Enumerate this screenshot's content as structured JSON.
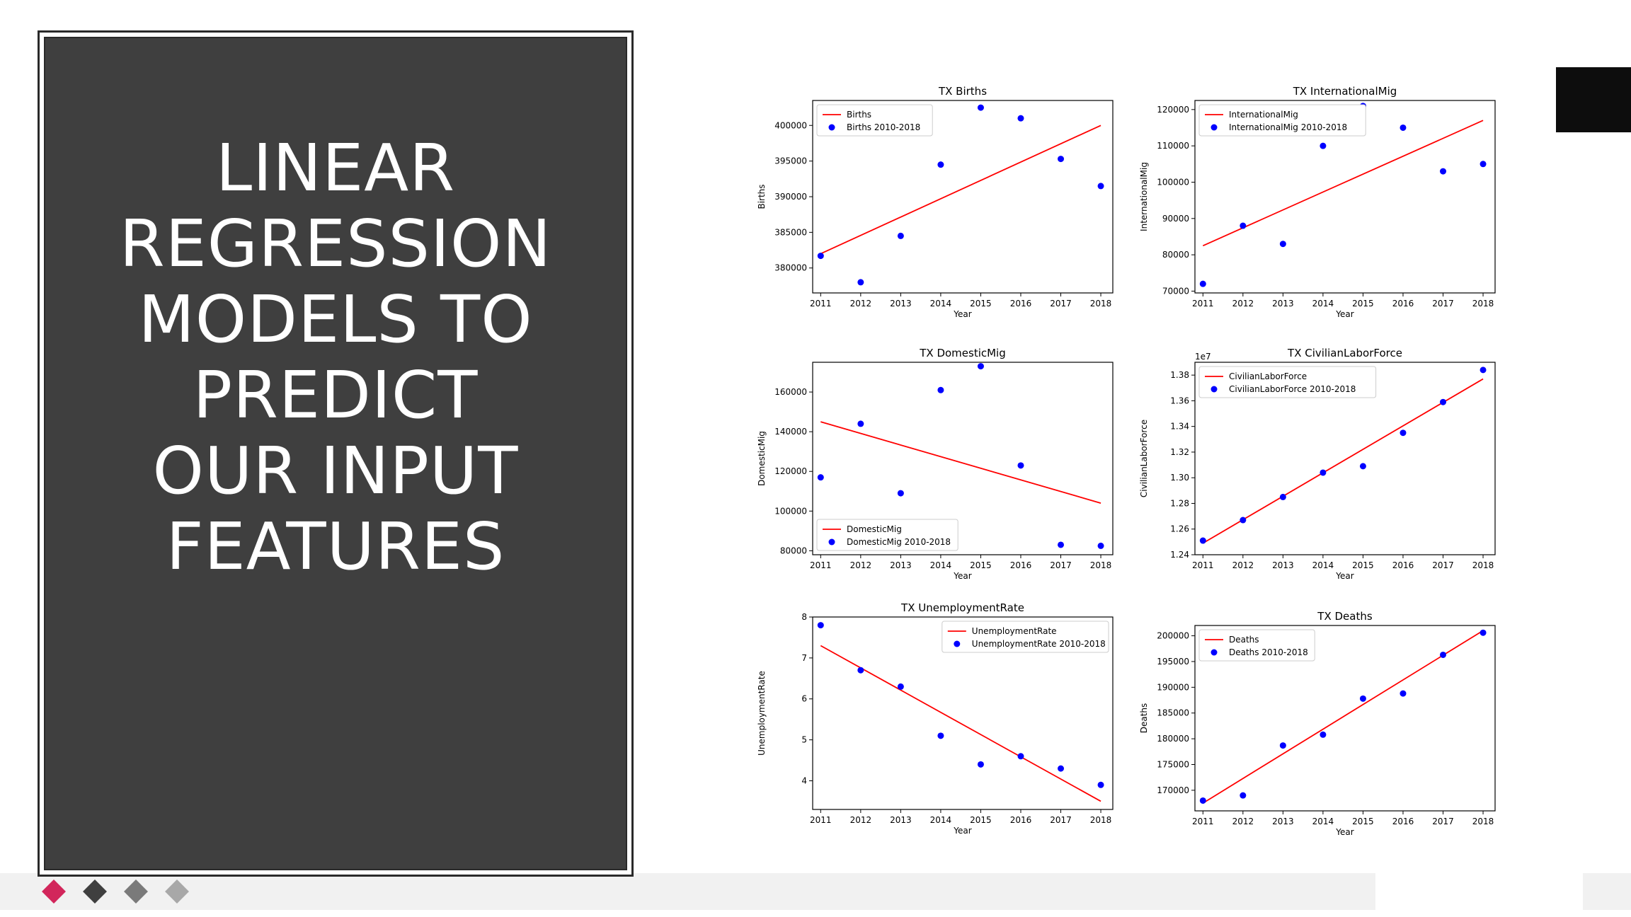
{
  "slide": {
    "title": "LINEAR\nREGRESSION\nMODELS TO\nPREDICT\nOUR INPUT\nFEATURES"
  },
  "nav_diamonds": [
    {
      "name": "diamond-1",
      "color": "#d2265b"
    },
    {
      "name": "diamond-2",
      "color": "#3f3f3f"
    },
    {
      "name": "diamond-3",
      "color": "#7a7a7a"
    },
    {
      "name": "diamond-4",
      "color": "#a8a8a8"
    }
  ],
  "colors": {
    "fit_line": "#ff0000",
    "points": "#0000ff"
  },
  "chart_data": [
    {
      "type": "scatter",
      "title": "TX Births",
      "xlabel": "Year",
      "ylabel": "Births",
      "x": [
        2011,
        2012,
        2013,
        2014,
        2015,
        2016,
        2017,
        2018
      ],
      "xlim": [
        2010.8,
        2018.3
      ],
      "ylim": [
        376500,
        403500
      ],
      "yticks": [
        380000,
        385000,
        390000,
        395000,
        400000
      ],
      "ytick_labels": [
        "380000",
        "385000",
        "390000",
        "395000",
        "400000"
      ],
      "series": [
        {
          "name": "Births",
          "kind": "line",
          "points": [
            [
              2011,
              382000
            ],
            [
              2018,
              400000
            ]
          ]
        },
        {
          "name": "Births 2010-2018",
          "kind": "scatter",
          "values": [
            381700,
            378000,
            384500,
            394500,
            402500,
            401000,
            395300,
            391500
          ]
        }
      ],
      "legend": "upper left",
      "scale": 1.0
    },
    {
      "type": "scatter",
      "title": "TX InternationalMig",
      "xlabel": "Year",
      "ylabel": "InternationalMig",
      "x": [
        2011,
        2012,
        2013,
        2014,
        2015,
        2016,
        2017,
        2018
      ],
      "xlim": [
        2010.8,
        2018.3
      ],
      "ylim": [
        69500,
        122500
      ],
      "yticks": [
        70000,
        80000,
        90000,
        100000,
        110000,
        120000
      ],
      "ytick_labels": [
        "70000",
        "80000",
        "90000",
        "100000",
        "110000",
        "120000"
      ],
      "series": [
        {
          "name": "InternationalMig",
          "kind": "line",
          "points": [
            [
              2011,
              82500
            ],
            [
              2018,
              117000
            ]
          ]
        },
        {
          "name": "InternationalMig 2010-2018",
          "kind": "scatter",
          "values": [
            72000,
            88000,
            83000,
            110000,
            121000,
            115000,
            103000,
            105000
          ]
        }
      ],
      "legend": "upper left",
      "scale": 1.0
    },
    {
      "type": "scatter",
      "title": "TX DomesticMig",
      "xlabel": "Year",
      "ylabel": "DomesticMig",
      "x": [
        2011,
        2012,
        2013,
        2014,
        2015,
        2016,
        2017,
        2018
      ],
      "xlim": [
        2010.8,
        2018.3
      ],
      "ylim": [
        78000,
        175000
      ],
      "yticks": [
        80000,
        100000,
        120000,
        140000,
        160000
      ],
      "ytick_labels": [
        "80000",
        "100000",
        "120000",
        "140000",
        "160000"
      ],
      "series": [
        {
          "name": "DomesticMig",
          "kind": "line",
          "points": [
            [
              2011,
              145000
            ],
            [
              2018,
              104000
            ]
          ]
        },
        {
          "name": "DomesticMig 2010-2018",
          "kind": "scatter",
          "values": [
            117000,
            144000,
            109000,
            161000,
            173000,
            123000,
            83000,
            82500
          ]
        }
      ],
      "legend": "lower left",
      "scale": 1.0
    },
    {
      "type": "scatter",
      "title": "TX CivilianLaborForce",
      "xlabel": "Year",
      "ylabel": "CivilianLaborForce",
      "x": [
        2011,
        2012,
        2013,
        2014,
        2015,
        2016,
        2017,
        2018
      ],
      "xlim": [
        2010.8,
        2018.3
      ],
      "ylim": [
        1.24,
        1.39
      ],
      "yticks": [
        1.24,
        1.26,
        1.28,
        1.3,
        1.32,
        1.34,
        1.36,
        1.38
      ],
      "ytick_labels": [
        "1.24",
        "1.26",
        "1.28",
        "1.30",
        "1.32",
        "1.34",
        "1.36",
        "1.38"
      ],
      "series": [
        {
          "name": "CivilianLaborForce",
          "kind": "line",
          "points": [
            [
              2011,
              1.249
            ],
            [
              2018,
              1.377
            ]
          ]
        },
        {
          "name": "CivilianLaborForce 2010-2018",
          "kind": "scatter",
          "values": [
            1.251,
            1.267,
            1.285,
            1.304,
            1.309,
            1.335,
            1.359,
            1.384
          ]
        }
      ],
      "legend": "upper left",
      "scale": 10000000.0,
      "offset_label": "1e7"
    },
    {
      "type": "scatter",
      "title": "TX UnemploymentRate",
      "xlabel": "Year",
      "ylabel": "UnemploymentRate",
      "x": [
        2011,
        2012,
        2013,
        2014,
        2015,
        2016,
        2017,
        2018
      ],
      "xlim": [
        2010.8,
        2018.3
      ],
      "ylim": [
        3.3,
        8.0
      ],
      "yticks": [
        4,
        5,
        6,
        7,
        8
      ],
      "ytick_labels": [
        "4",
        "5",
        "6",
        "7",
        "8"
      ],
      "series": [
        {
          "name": "UnemploymentRate",
          "kind": "line",
          "points": [
            [
              2011,
              7.3
            ],
            [
              2018,
              3.5
            ]
          ]
        },
        {
          "name": "UnemploymentRate 2010-2018",
          "kind": "scatter",
          "values": [
            7.8,
            6.7,
            6.3,
            5.1,
            4.4,
            4.6,
            4.3,
            3.9
          ]
        }
      ],
      "legend": "upper right",
      "scale": 1.0
    },
    {
      "type": "scatter",
      "title": "TX Deaths",
      "xlabel": "Year",
      "ylabel": "Deaths",
      "x": [
        2011,
        2012,
        2013,
        2014,
        2015,
        2016,
        2017,
        2018
      ],
      "xlim": [
        2010.8,
        2018.3
      ],
      "ylim": [
        166000,
        202000
      ],
      "yticks": [
        170000,
        175000,
        180000,
        185000,
        190000,
        195000,
        200000
      ],
      "ytick_labels": [
        "170000",
        "175000",
        "180000",
        "185000",
        "190000",
        "195000",
        "200000"
      ],
      "series": [
        {
          "name": "Deaths",
          "kind": "line",
          "points": [
            [
              2011,
              167500
            ],
            [
              2018,
              201000
            ]
          ]
        },
        {
          "name": "Deaths 2010-2018",
          "kind": "scatter",
          "values": [
            168000,
            169000,
            178700,
            180800,
            187800,
            188800,
            196300,
            200600
          ]
        }
      ],
      "legend": "upper left",
      "scale": 1.0
    }
  ]
}
